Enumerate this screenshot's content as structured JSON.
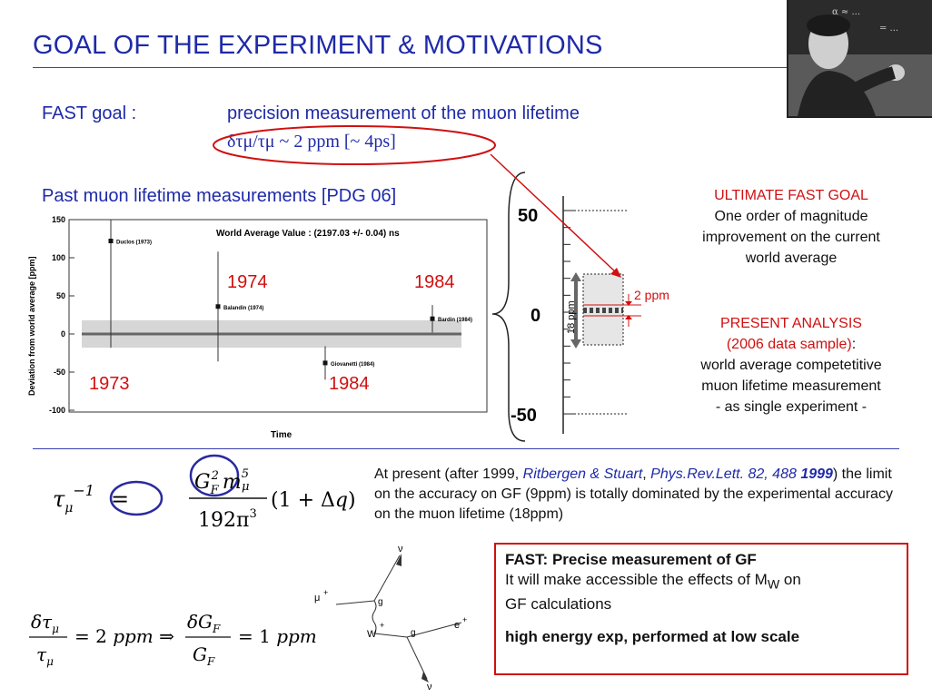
{
  "title": "GOAL OF THE EXPERIMENT & MOTIVATIONS",
  "fast_goal": {
    "label": "FAST goal :",
    "text": "precision measurement of the muon lifetime",
    "precision": "δτμ/τμ ~ 2 ppm   [~ 4ps]"
  },
  "past_heading": "Past muon lifetime measurements [PDG 06]",
  "chart_data": {
    "type": "scatter",
    "title": "World Average Value : (2197.03 +/- 0.04) ns",
    "xlabel": "Time",
    "ylabel": "Deviation from world average [ppm]",
    "ylim": [
      -100,
      150
    ],
    "yticks": [
      "150",
      "100",
      "50",
      "0",
      "-50",
      "-100"
    ],
    "points": [
      {
        "label": "Duclos (1973)",
        "y": 122,
        "err": 140
      },
      {
        "label": "Balandin (1974)",
        "y": 36,
        "err": 72
      },
      {
        "label": "Giovanetti (1984)",
        "y": -38,
        "err": 22
      },
      {
        "label": "Bardin (1984)",
        "y": 20,
        "err": 18
      }
    ],
    "band_halfwidth": 18,
    "year_labels": [
      "1974",
      "1984",
      "1973",
      "1984"
    ]
  },
  "scale": {
    "top": "50",
    "mid": "0",
    "bottom": "-50",
    "left_label": "18 ppm",
    "right_label": "2 ppm"
  },
  "ultimate": {
    "heading": "ULTIMATE FAST GOAL",
    "lines": [
      "One order of magnitude",
      "improvement on the current",
      "world average"
    ]
  },
  "present": {
    "heading": "PRESENT ANALYSIS",
    "sub": "(2006 data sample)",
    "colon": ":",
    "lines": [
      "world average competetitive",
      "muon lifetime measurement",
      "- as single experiment -"
    ]
  },
  "formula1": "τμ⁻¹ = G_F² m_μ⁵ / 192π³ (1 + Δq)",
  "formula2": "δτμ/τμ = 2 ppm ⇒ δG_F/G_F = 1 ppm",
  "paragraph": {
    "pre": "At present (after 1999, ",
    "authors": "Ritbergen & Stuart",
    "sep": ", ",
    "journal": "Phys.Rev.Lett. 82, 488",
    "year": "1999",
    "post": ") the limit on the accuracy on GF (9ppm) is totally dominated by the experimental accuracy on the muon lifetime (18ppm)"
  },
  "feynman": {
    "mu": "μ",
    "numu": "ν",
    "g1": "g",
    "g2": "g",
    "w": "W",
    "e": "e",
    "nue": "ν",
    "plus": "+"
  },
  "box": {
    "l1": "FAST: Precise measurement of GF",
    "l2a": "It will make accessible the effects of M",
    "l2sub": "W",
    "l2b": " on",
    "l3": "GF calculations",
    "l4": "high energy exp, performed at low scale"
  }
}
